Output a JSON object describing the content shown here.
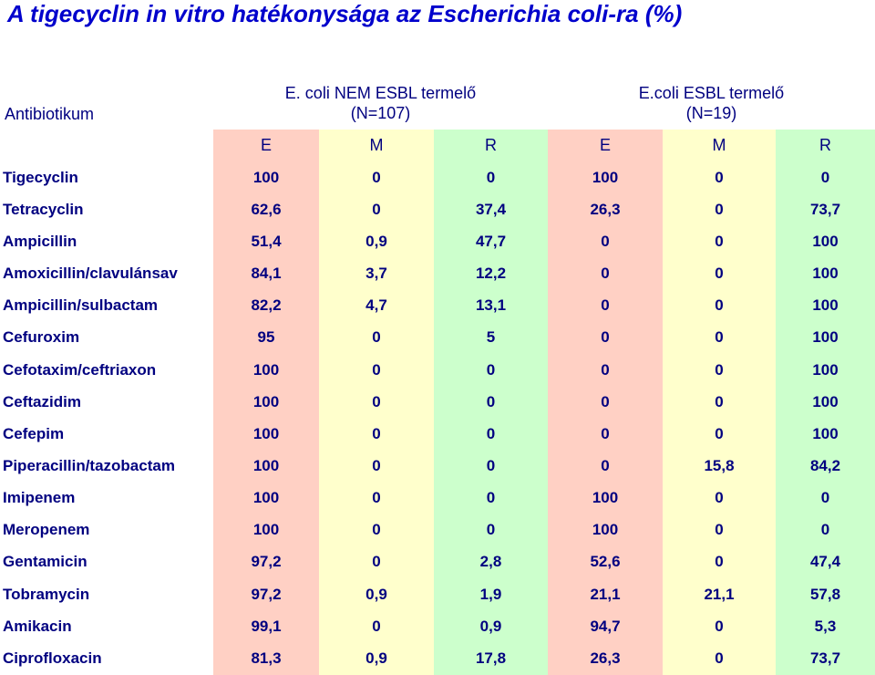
{
  "title": "A tigecyclin in vitro hatékonysága az Escherichia coli-ra (%)",
  "header": {
    "antibiotic_label": "Antibiotikum",
    "group1": {
      "name": "E. coli NEM ESBL termelő",
      "n": "(N=107)"
    },
    "group2": {
      "name": "E.coli ESBL termelő",
      "n": "(N=19)"
    },
    "subcolumns": [
      "E",
      "M",
      "R",
      "E",
      "M",
      "R"
    ]
  },
  "colors": {
    "title": "#0000cc",
    "text": "#000080",
    "E_column": "#ffd0c4",
    "M_column": "#ffffcc",
    "R_column": "#ccffcc"
  },
  "rows": [
    {
      "name": "Tigecyclin",
      "values": [
        "100",
        "0",
        "0",
        "100",
        "0",
        "0"
      ]
    },
    {
      "name": "Tetracyclin",
      "values": [
        "62,6",
        "0",
        "37,4",
        "26,3",
        "0",
        "73,7"
      ]
    },
    {
      "name": "Ampicillin",
      "values": [
        "51,4",
        "0,9",
        "47,7",
        "0",
        "0",
        "100"
      ]
    },
    {
      "name": "Amoxicillin/clavulánsav",
      "values": [
        "84,1",
        "3,7",
        "12,2",
        "0",
        "0",
        "100"
      ]
    },
    {
      "name": "Ampicillin/sulbactam",
      "values": [
        "82,2",
        "4,7",
        "13,1",
        "0",
        "0",
        "100"
      ]
    },
    {
      "name": "Cefuroxim",
      "values": [
        "95",
        "0",
        "5",
        "0",
        "0",
        "100"
      ]
    },
    {
      "name": "Cefotaxim/ceftriaxon",
      "values": [
        "100",
        "0",
        "0",
        "0",
        "0",
        "100"
      ]
    },
    {
      "name": "Ceftazidim",
      "values": [
        "100",
        "0",
        "0",
        "0",
        "0",
        "100"
      ]
    },
    {
      "name": "Cefepim",
      "values": [
        "100",
        "0",
        "0",
        "0",
        "0",
        "100"
      ]
    },
    {
      "name": "Piperacillin/tazobactam",
      "values": [
        "100",
        "0",
        "0",
        "0",
        "15,8",
        "84,2"
      ]
    },
    {
      "name": "Imipenem",
      "values": [
        "100",
        "0",
        "0",
        "100",
        "0",
        "0"
      ]
    },
    {
      "name": "Meropenem",
      "values": [
        "100",
        "0",
        "0",
        "100",
        "0",
        "0"
      ]
    },
    {
      "name": "Gentamicin",
      "values": [
        "97,2",
        "0",
        "2,8",
        "52,6",
        "0",
        "47,4"
      ]
    },
    {
      "name": "Tobramycin",
      "values": [
        "97,2",
        "0,9",
        "1,9",
        "21,1",
        "21,1",
        "57,8"
      ]
    },
    {
      "name": "Amikacin",
      "values": [
        "99,1",
        "0",
        "0,9",
        "94,7",
        "0",
        "5,3"
      ]
    },
    {
      "name": "Ciprofloxacin",
      "values": [
        "81,3",
        "0,9",
        "17,8",
        "26,3",
        "0",
        "73,7"
      ]
    }
  ]
}
